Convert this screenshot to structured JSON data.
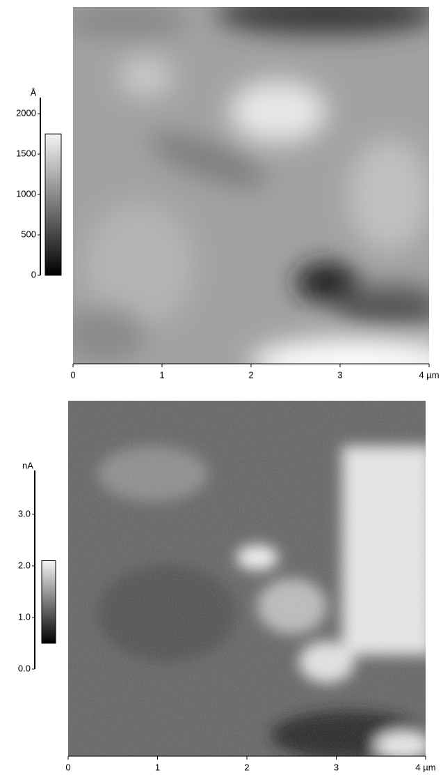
{
  "chart_data": [
    {
      "type": "image",
      "xlim": [
        0,
        4
      ],
      "xticks": [
        0,
        1,
        2,
        3,
        {
          "value": 4,
          "label": "4 µm"
        }
      ],
      "colorbar": {
        "unit": "Å",
        "ylim": [
          0,
          2200
        ],
        "yticks": [
          0,
          500,
          1000,
          1500,
          2000
        ],
        "clim": [
          0,
          1750
        ]
      }
    },
    {
      "type": "image",
      "xlim": [
        0,
        4
      ],
      "xticks": [
        0,
        1,
        2,
        3,
        {
          "value": 4,
          "label": "4 µm"
        }
      ],
      "colorbar": {
        "unit": "nA",
        "ylim": [
          0,
          3.85
        ],
        "yticks": [
          {
            "value": 0,
            "label": "0.0"
          },
          {
            "value": 1,
            "label": "1.0"
          },
          {
            "value": 2,
            "label": "2.0"
          },
          {
            "value": 3,
            "label": "3.0"
          }
        ],
        "clim": [
          0.5,
          2.1
        ]
      }
    }
  ]
}
